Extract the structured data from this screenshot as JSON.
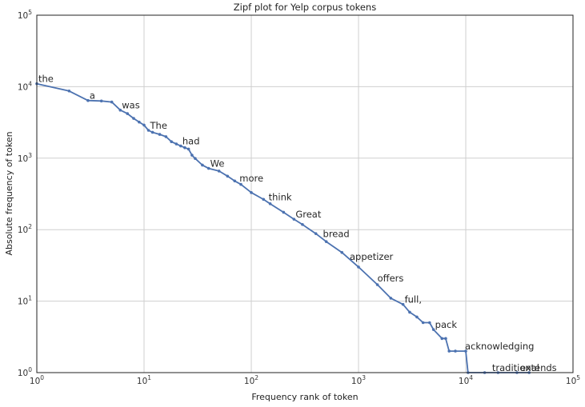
{
  "chart_data": {
    "type": "line",
    "title": "Zipf plot for Yelp corpus tokens",
    "xlabel": "Frequency rank of token",
    "ylabel": "Absolute frequency of token",
    "x_scale": "log",
    "y_scale": "log",
    "xlim": [
      1,
      100000
    ],
    "ylim": [
      1,
      100000
    ],
    "grid": true,
    "line_color": "#4c72b0",
    "x_ticks": [
      {
        "base": "10",
        "exp": "0",
        "value": 1
      },
      {
        "base": "10",
        "exp": "1",
        "value": 10
      },
      {
        "base": "10",
        "exp": "2",
        "value": 100
      },
      {
        "base": "10",
        "exp": "3",
        "value": 1000
      },
      {
        "base": "10",
        "exp": "4",
        "value": 10000
      },
      {
        "base": "10",
        "exp": "5",
        "value": 100000
      }
    ],
    "y_ticks": [
      {
        "base": "10",
        "exp": "0",
        "value": 1
      },
      {
        "base": "10",
        "exp": "1",
        "value": 10
      },
      {
        "base": "10",
        "exp": "2",
        "value": 100
      },
      {
        "base": "10",
        "exp": "3",
        "value": 1000
      },
      {
        "base": "10",
        "exp": "4",
        "value": 10000
      },
      {
        "base": "10",
        "exp": "5",
        "value": 100000
      }
    ],
    "points": [
      [
        1,
        11000
      ],
      [
        2,
        8700
      ],
      [
        3,
        6400
      ],
      [
        4,
        6300
      ],
      [
        5,
        6100
      ],
      [
        6,
        4700
      ],
      [
        7,
        4200
      ],
      [
        8,
        3600
      ],
      [
        9,
        3200
      ],
      [
        10,
        2900
      ],
      [
        11,
        2450
      ],
      [
        12,
        2300
      ],
      [
        14,
        2150
      ],
      [
        16,
        2000
      ],
      [
        18,
        1700
      ],
      [
        20,
        1580
      ],
      [
        22,
        1480
      ],
      [
        24,
        1400
      ],
      [
        26,
        1340
      ],
      [
        28,
        1100
      ],
      [
        30,
        990
      ],
      [
        35,
        800
      ],
      [
        40,
        720
      ],
      [
        50,
        660
      ],
      [
        60,
        560
      ],
      [
        70,
        480
      ],
      [
        80,
        430
      ],
      [
        100,
        330
      ],
      [
        130,
        265
      ],
      [
        150,
        230
      ],
      [
        200,
        175
      ],
      [
        250,
        140
      ],
      [
        300,
        118
      ],
      [
        400,
        88
      ],
      [
        500,
        68
      ],
      [
        700,
        48
      ],
      [
        1000,
        30
      ],
      [
        1500,
        17
      ],
      [
        2000,
        11
      ],
      [
        2600,
        9
      ],
      [
        3000,
        7
      ],
      [
        3500,
        6
      ],
      [
        4000,
        5
      ],
      [
        4600,
        5
      ],
      [
        5000,
        4
      ],
      [
        6000,
        3
      ],
      [
        6500,
        3
      ],
      [
        7000,
        2
      ],
      [
        8000,
        2
      ],
      [
        10000,
        2
      ],
      [
        10500,
        1
      ],
      [
        15000,
        1
      ],
      [
        20000,
        1
      ],
      [
        30000,
        1
      ],
      [
        39000,
        1
      ]
    ],
    "annotations": [
      {
        "text": "the",
        "x": 1,
        "y": 11000
      },
      {
        "text": "a",
        "x": 3,
        "y": 6400
      },
      {
        "text": "was",
        "x": 6,
        "y": 4700
      },
      {
        "text": "The",
        "x": 11,
        "y": 2450
      },
      {
        "text": "had",
        "x": 22,
        "y": 1480
      },
      {
        "text": "We",
        "x": 40,
        "y": 720
      },
      {
        "text": "more",
        "x": 75,
        "y": 450
      },
      {
        "text": "think",
        "x": 140,
        "y": 245
      },
      {
        "text": "Great",
        "x": 250,
        "y": 140
      },
      {
        "text": "bread",
        "x": 450,
        "y": 75
      },
      {
        "text": "appetizer",
        "x": 800,
        "y": 36
      },
      {
        "text": "offers",
        "x": 1450,
        "y": 18
      },
      {
        "text": "full,",
        "x": 2600,
        "y": 9
      },
      {
        "text": "pack",
        "x": 5000,
        "y": 4
      },
      {
        "text": "acknowledging",
        "x": 9500,
        "y": 2
      },
      {
        "text": "traditional",
        "x": 17000,
        "y": 1
      },
      {
        "text": "extends",
        "x": 31000,
        "y": 1
      }
    ]
  }
}
